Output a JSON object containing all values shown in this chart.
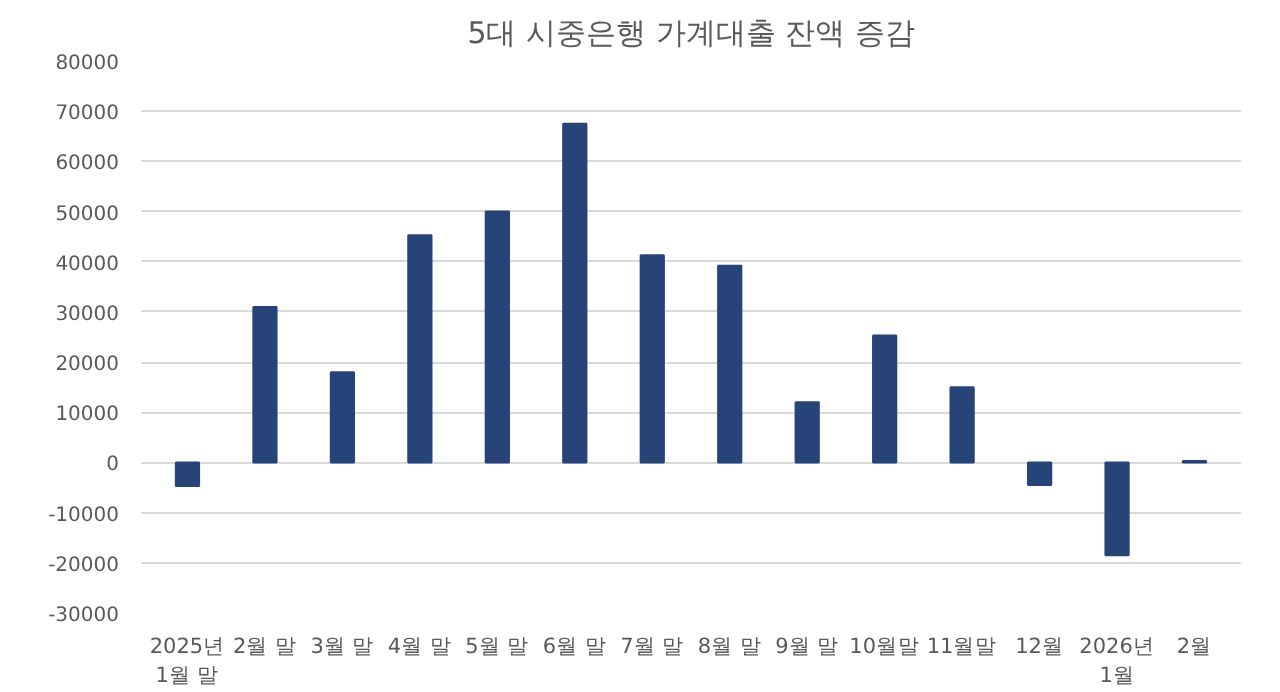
{
  "chart_data": {
    "type": "bar",
    "title": "5대 시중은행 가계대출 잔액 증감",
    "categories": [
      "2025년\n1월 말",
      "2월 말",
      "3월 말",
      "4월 말",
      "5월 말",
      "6월 말",
      "7월 말",
      "8월 말",
      "9월 말",
      "10월말",
      "11월말",
      "12월",
      "2026년\n1월",
      "2월"
    ],
    "series": [
      {
        "color": "#264478",
        "values": [
          -4700,
          31000,
          18000,
          45300,
          50000,
          67500,
          41300,
          39200,
          12000,
          25300,
          15000,
          -4500,
          -18500,
          300
        ]
      }
    ],
    "ylim": [
      -30000,
      80000
    ],
    "yticks": [
      -30000,
      -20000,
      -10000,
      0,
      10000,
      20000,
      30000,
      40000,
      50000,
      60000,
      70000,
      80000
    ],
    "grid": "y"
  }
}
